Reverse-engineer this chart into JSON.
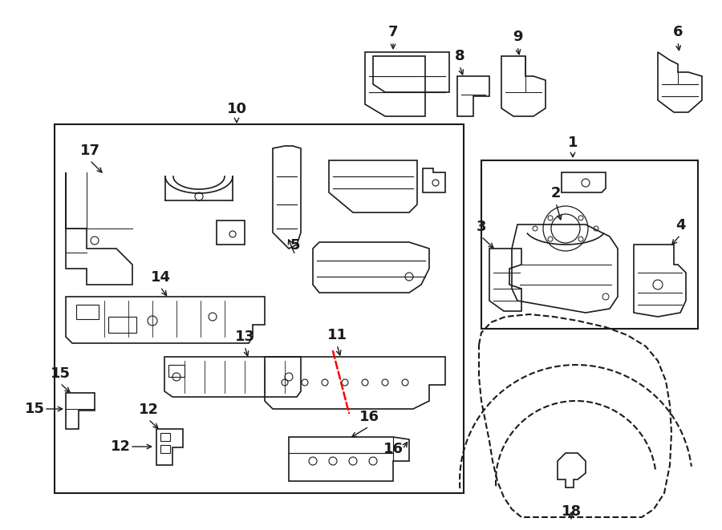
{
  "background": "#ffffff",
  "line_color": "#1a1a1a",
  "figsize": [
    9.0,
    6.61
  ],
  "dpi": 100
}
